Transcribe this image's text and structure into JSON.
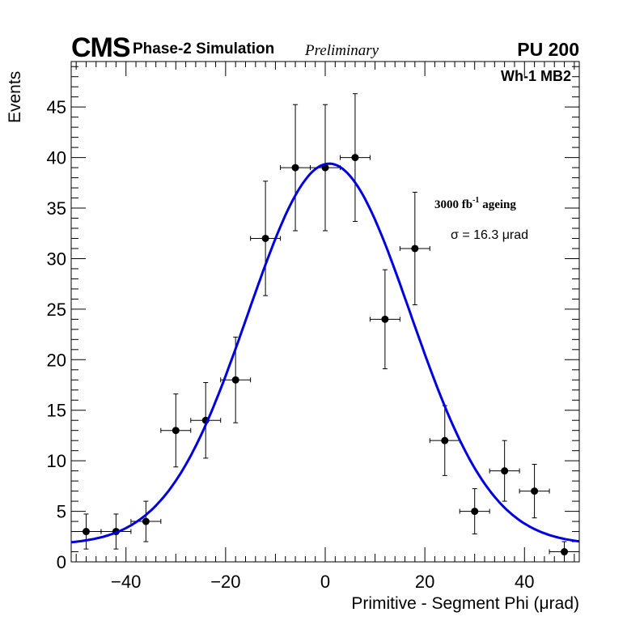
{
  "header": {
    "experiment": "CMS",
    "subtitle": "Phase-2 Simulation",
    "status": "Preliminary",
    "pileup": "PU 200"
  },
  "chart_data": {
    "type": "scatter",
    "title": "",
    "xlabel": "Primitive - Segment Phi (μrad)",
    "ylabel": "Events",
    "xlim": [
      -51,
      51
    ],
    "ylim": [
      0,
      49.5
    ],
    "xticks": [
      -40,
      -20,
      0,
      20,
      40
    ],
    "xtick_labels": [
      "−40",
      "−20",
      "0",
      "20",
      "40"
    ],
    "yticks": [
      0,
      5,
      10,
      15,
      20,
      25,
      30,
      35,
      40,
      45
    ],
    "ytick_labels": [
      "0",
      "5",
      "10",
      "15",
      "20",
      "25",
      "30",
      "35",
      "40",
      "45"
    ],
    "grid": false,
    "annotations": {
      "region": "Wh-1 MB2",
      "ageing_prefix": "3000 fb",
      "ageing_sup": "-1",
      "ageing_suffix": " ageing",
      "sigma": "σ = 16.3 μrad"
    },
    "series": [
      {
        "name": "Simulated events",
        "bin_half_width": 3,
        "x": [
          -48,
          -42,
          -36,
          -30,
          -24,
          -18,
          -12,
          -6,
          0,
          6,
          12,
          18,
          24,
          30,
          36,
          42,
          48
        ],
        "y": [
          3,
          3,
          4,
          13,
          14,
          18,
          32,
          39,
          39,
          40,
          24,
          31,
          12,
          5,
          9,
          7,
          1
        ],
        "yerr": [
          1.73,
          1.73,
          2,
          3.61,
          3.74,
          4.24,
          5.66,
          6.24,
          6.24,
          6.32,
          4.9,
          5.57,
          3.46,
          2.24,
          3,
          2.65,
          1
        ]
      },
      {
        "name": "Gaussian fit",
        "type": "line",
        "color": "#0000e0",
        "amplitude": 37.7,
        "mean": 0.8,
        "sigma": 16.3,
        "constant": 1.7
      }
    ]
  }
}
